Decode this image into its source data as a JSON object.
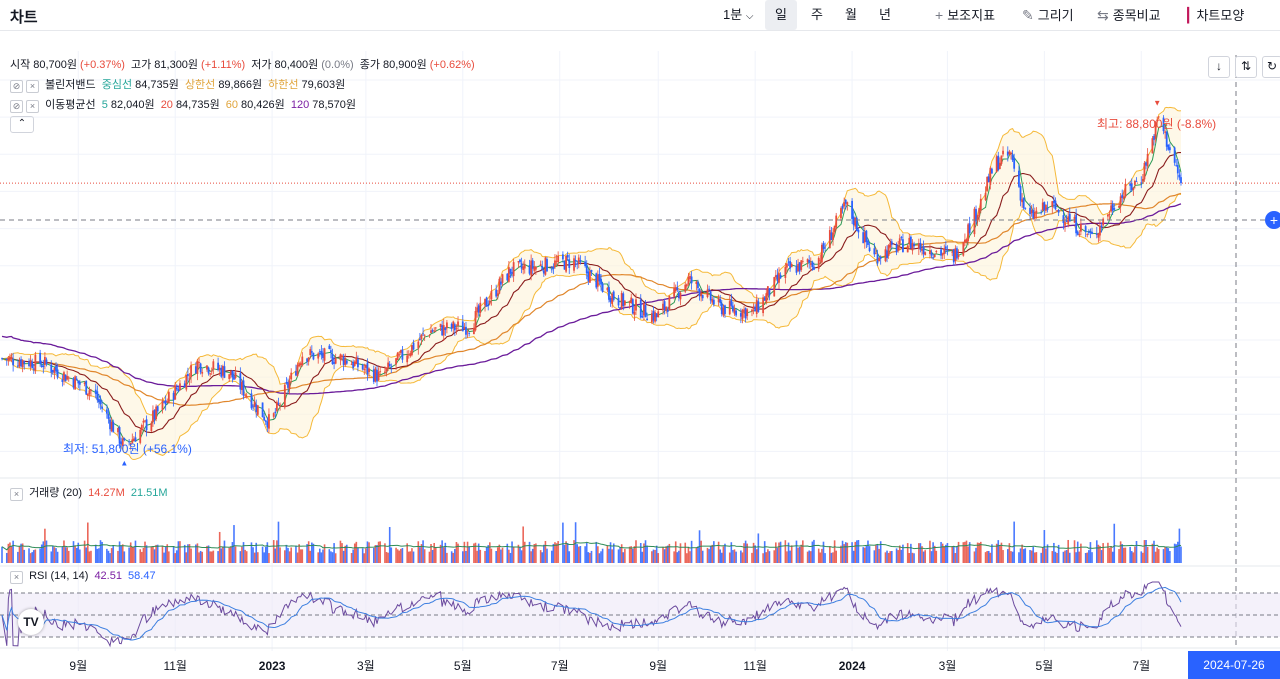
{
  "toolbar": {
    "title": "차트",
    "interval": "1분",
    "tabs": [
      "일",
      "주",
      "월",
      "년"
    ],
    "active_tab": "일",
    "indicator_label": "보조지표",
    "draw_label": "그리기",
    "compare_label": "종목비교",
    "chartstyle_label": "차트모양"
  },
  "legend": {
    "ohlc": {
      "open_label": "시작",
      "open": "80,700원",
      "open_chg": "(+0.37%)",
      "high_label": "고가",
      "high": "81,300원",
      "high_chg": "(+1.11%)",
      "low_label": "저가",
      "low": "80,400원",
      "low_chg": "(0.0%)",
      "close_label": "종가",
      "close": "80,900원",
      "close_chg": "(+0.62%)"
    },
    "bb": {
      "name": "볼린저밴드",
      "mid_label": "중심선",
      "mid": "84,735원",
      "up_label": "상한선",
      "up": "89,866원",
      "low_label": "하한선",
      "low": "79,603원"
    },
    "ma": {
      "name": "이동평균선",
      "p5": "5",
      "v5": "82,040원",
      "p20": "20",
      "v20": "84,735원",
      "p60": "60",
      "v60": "80,426원",
      "p120": "120",
      "v120": "78,570원"
    },
    "volume": {
      "name": "거래량 (20)",
      "v1": "14.27M",
      "v2": "21.51M"
    },
    "rsi": {
      "name": "RSI (14, 14)",
      "v1": "42.51",
      "v2": "58.47"
    }
  },
  "annotations": {
    "max": "최고: 88,800원 (-8.8%)",
    "min": "최저: 51,800원 (+56.1%)"
  },
  "crosshair_date": "2024-07-26",
  "logo": "TV",
  "colors": {
    "up": "#e84c3d",
    "down": "#2962ff",
    "bb_band": "#f5b939",
    "ma5": "#2e9c57",
    "ma20": "#8a1d1d",
    "ma60": "#e0862b",
    "ma120": "#6a1b9a",
    "rsi": "#6b4a9e",
    "rsi_signal": "#3d7fe0",
    "vol_ma": "#2e8b57"
  },
  "chart_data": {
    "type": "candlestick",
    "price_axis_range": [
      50000,
      92000
    ],
    "time_axis_labels": [
      "9월",
      "11월",
      "2023",
      "3월",
      "5월",
      "7월",
      "9월",
      "11월",
      "2024",
      "3월",
      "5월",
      "7월"
    ],
    "anchors": [
      {
        "date": "2022-07-15",
        "close": 62000
      },
      {
        "date": "2022-08-10",
        "close": 61500
      },
      {
        "date": "2022-09-10",
        "close": 58500
      },
      {
        "date": "2022-09-30",
        "close": 52500
      },
      {
        "date": "2022-10-20",
        "close": 56000
      },
      {
        "date": "2022-11-15",
        "close": 61500
      },
      {
        "date": "2022-12-05",
        "close": 60500
      },
      {
        "date": "2022-12-31",
        "close": 55000
      },
      {
        "date": "2023-01-20",
        "close": 62500
      },
      {
        "date": "2023-02-15",
        "close": 62000
      },
      {
        "date": "2023-03-10",
        "close": 60000
      },
      {
        "date": "2023-04-10",
        "close": 65000
      },
      {
        "date": "2023-05-05",
        "close": 65500
      },
      {
        "date": "2023-05-31",
        "close": 71500
      },
      {
        "date": "2023-06-20",
        "close": 72000
      },
      {
        "date": "2023-07-10",
        "close": 72500
      },
      {
        "date": "2023-08-05",
        "close": 68500
      },
      {
        "date": "2023-08-31",
        "close": 66500
      },
      {
        "date": "2023-09-20",
        "close": 70500
      },
      {
        "date": "2023-10-10",
        "close": 67500
      },
      {
        "date": "2023-10-31",
        "close": 67000
      },
      {
        "date": "2023-11-20",
        "close": 71500
      },
      {
        "date": "2023-12-10",
        "close": 72500
      },
      {
        "date": "2023-12-28",
        "close": 78500
      },
      {
        "date": "2024-01-15",
        "close": 73000
      },
      {
        "date": "2024-02-05",
        "close": 74500
      },
      {
        "date": "2024-03-05",
        "close": 73000
      },
      {
        "date": "2024-03-20",
        "close": 78000
      },
      {
        "date": "2024-03-31",
        "close": 83000
      },
      {
        "date": "2024-04-10",
        "close": 84000
      },
      {
        "date": "2024-04-20",
        "close": 77000
      },
      {
        "date": "2024-05-05",
        "close": 78500
      },
      {
        "date": "2024-05-31",
        "close": 75000
      },
      {
        "date": "2024-06-15",
        "close": 79000
      },
      {
        "date": "2024-07-01",
        "close": 81500
      },
      {
        "date": "2024-07-12",
        "close": 88000
      },
      {
        "date": "2024-07-26",
        "close": 80900
      }
    ],
    "current_price": 80900,
    "max_point": {
      "date": "2024-07-11",
      "value": 88800
    },
    "min_point": {
      "date": "2022-09-30",
      "value": 51800
    },
    "rsi_levels": [
      70,
      50,
      30
    ]
  }
}
